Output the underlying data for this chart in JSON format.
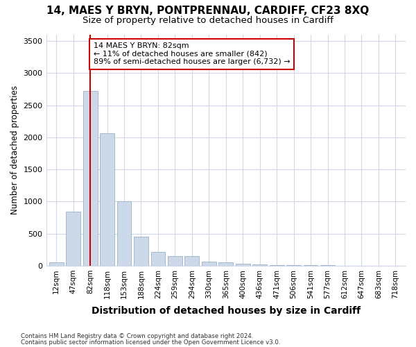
{
  "title_line1": "14, MAES Y BRYN, PONTPRENNAU, CARDIFF, CF23 8XQ",
  "title_line2": "Size of property relative to detached houses in Cardiff",
  "xlabel": "Distribution of detached houses by size in Cardiff",
  "ylabel": "Number of detached properties",
  "categories": [
    "12sqm",
    "47sqm",
    "82sqm",
    "118sqm",
    "153sqm",
    "188sqm",
    "224sqm",
    "259sqm",
    "294sqm",
    "330sqm",
    "365sqm",
    "400sqm",
    "436sqm",
    "471sqm",
    "506sqm",
    "541sqm",
    "577sqm",
    "612sqm",
    "647sqm",
    "683sqm",
    "718sqm"
  ],
  "values": [
    55,
    840,
    2720,
    2060,
    1010,
    455,
    215,
    150,
    145,
    65,
    50,
    35,
    25,
    15,
    10,
    8,
    5,
    3,
    2,
    1,
    1
  ],
  "bar_color": "#ccd9e8",
  "bar_edge_color": "#9ab0c8",
  "vline_x_index": 2,
  "vline_color": "#cc0000",
  "annotation_text": "14 MAES Y BRYN: 82sqm\n← 11% of detached houses are smaller (842)\n89% of semi-detached houses are larger (6,732) →",
  "annotation_box_color": "#cc0000",
  "ylim": [
    0,
    3600
  ],
  "yticks": [
    0,
    500,
    1000,
    1500,
    2000,
    2500,
    3000,
    3500
  ],
  "footnote_line1": "Contains HM Land Registry data © Crown copyright and database right 2024.",
  "footnote_line2": "Contains public sector information licensed under the Open Government Licence v3.0.",
  "bg_color": "#ffffff",
  "plot_bg_color": "#ffffff",
  "grid_color": "#d0d8e8",
  "title_fontsize": 11,
  "subtitle_fontsize": 9.5,
  "xlabel_fontsize": 10,
  "ylabel_fontsize": 8.5
}
